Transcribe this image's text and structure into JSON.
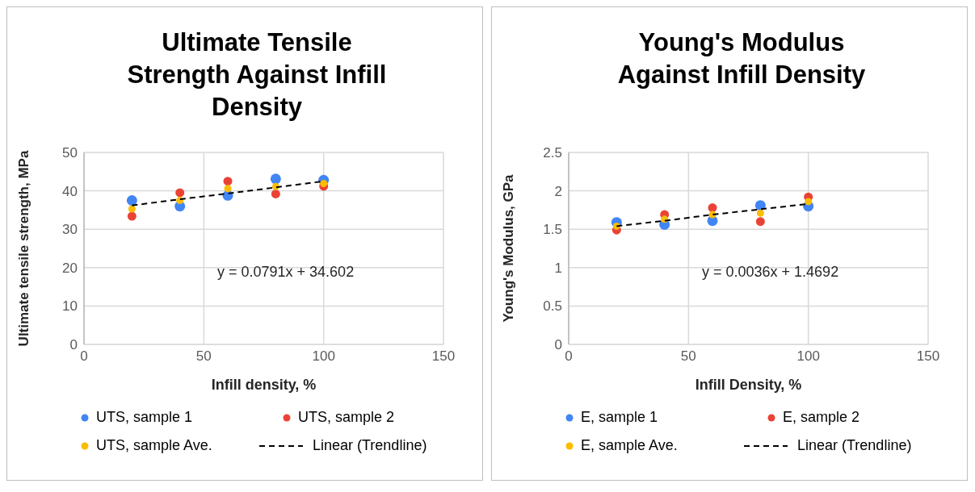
{
  "chart_data": [
    {
      "type": "scatter",
      "title": "Ultimate Tensile Strength Against Infill Density",
      "xlabel": "Infill density, %",
      "ylabel": "Ultimate tensile strength, MPa",
      "x": [
        20,
        40,
        60,
        80,
        100
      ],
      "xlim": [
        0,
        150
      ],
      "xticks": [
        0,
        50,
        100,
        150
      ],
      "ylim": [
        0,
        50
      ],
      "yticks": [
        0,
        10,
        20,
        30,
        40,
        50
      ],
      "grid": true,
      "legend": "bottom",
      "marker": "circle",
      "annotations": [
        "y = 0.0791x + 34.602"
      ],
      "series": [
        {
          "name": "UTS, sample 1",
          "color": "#4285f4",
          "values": [
            37.5,
            36.0,
            38.8,
            43.1,
            42.8
          ]
        },
        {
          "name": "UTS, sample 2",
          "color": "#ea4335",
          "values": [
            33.4,
            39.5,
            42.5,
            39.2,
            41.2
          ]
        },
        {
          "name": "UTS, sample Ave.",
          "color": "#fbbc04",
          "values": [
            35.3,
            37.5,
            40.6,
            41.1,
            41.9
          ]
        },
        {
          "name": "Linear (Trendline)",
          "type": "line",
          "color": "#000000",
          "line_style": "dashed",
          "marker": "none",
          "values": [
            36.2,
            37.8,
            39.3,
            40.9,
            42.5
          ]
        }
      ]
    },
    {
      "type": "scatter",
      "title": "Young's Modulus Against Infill Density",
      "xlabel": "Infill Density, %",
      "ylabel": "Young's Modulus, GPa",
      "x": [
        20,
        40,
        60,
        80,
        100
      ],
      "xlim": [
        0,
        150
      ],
      "xticks": [
        0,
        50,
        100,
        150
      ],
      "ylim": [
        0,
        2.5
      ],
      "yticks": [
        0,
        0.5,
        1,
        1.5,
        2,
        2.5
      ],
      "grid": true,
      "legend": "bottom",
      "marker": "circle",
      "annotations": [
        "y = 0.0036x + 1.4692"
      ],
      "series": [
        {
          "name": "E, sample 1",
          "color": "#4285f4",
          "values": [
            1.59,
            1.56,
            1.61,
            1.81,
            1.8
          ]
        },
        {
          "name": "E, sample 2",
          "color": "#ea4335",
          "values": [
            1.49,
            1.69,
            1.78,
            1.6,
            1.92
          ]
        },
        {
          "name": "E, sample Ave.",
          "color": "#fbbc04",
          "values": [
            1.54,
            1.63,
            1.69,
            1.71,
            1.86
          ]
        },
        {
          "name": "Linear (Trendline)",
          "type": "line",
          "color": "#000000",
          "line_style": "dashed",
          "marker": "none",
          "values": [
            1.54,
            1.61,
            1.69,
            1.76,
            1.83
          ]
        }
      ]
    }
  ]
}
